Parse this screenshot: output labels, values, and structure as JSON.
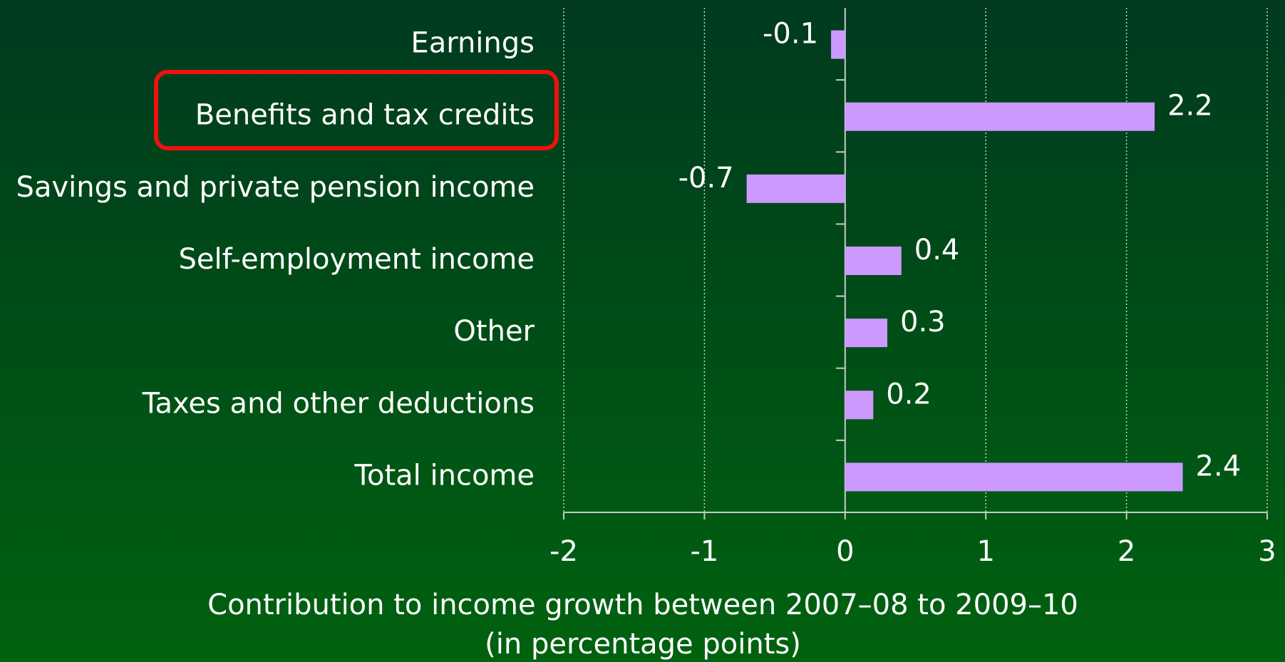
{
  "chart_data": {
    "type": "barh",
    "categories": [
      "Earnings",
      "Benefits and tax credits",
      "Savings and private pension income",
      "Self-employment income",
      "Other",
      "Taxes and other deductions",
      "Total income"
    ],
    "values": [
      -0.1,
      2.2,
      -0.7,
      0.4,
      0.3,
      0.2,
      2.4
    ],
    "color": "#cc99ff",
    "xlim": [
      -2,
      3
    ],
    "xticks": [
      -2,
      -1,
      0,
      1,
      2,
      3
    ],
    "grid": true,
    "xlabel": [
      "Contribution to income growth between 2007–08 to 2009–10",
      "(in percentage points)"
    ]
  }
}
